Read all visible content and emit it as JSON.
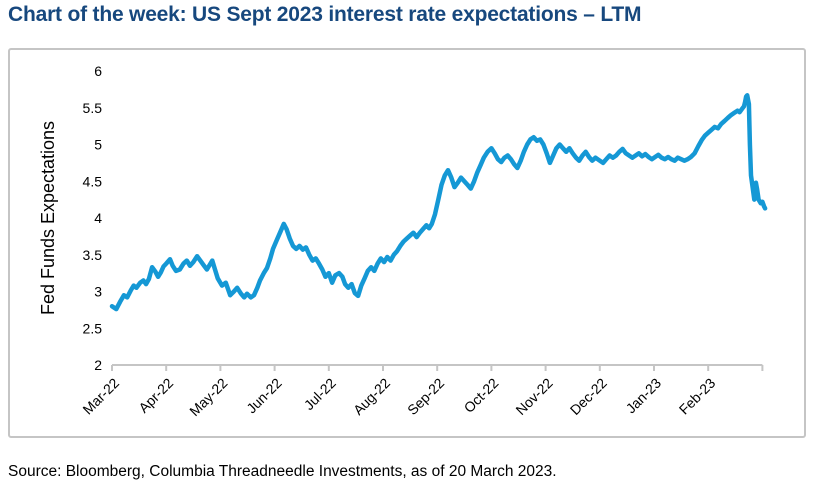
{
  "page": {
    "title": "Chart of the week: US Sept 2023 interest rate expectations – LTM",
    "source": "Source: Bloomberg, Columbia Threadneedle Investments, as of 20 March 2023.",
    "colors": {
      "title_navy": "#17487E",
      "line_blue": "#1598D5",
      "axis_gray": "#C5C5C5",
      "tick_text": "#000000"
    }
  },
  "chart_data": {
    "type": "line",
    "title": "US Sept 2023 interest rate expectations – LTM",
    "xlabel": "",
    "ylabel": "Fed Funds Expectations",
    "ylim": [
      2,
      6
    ],
    "y_ticks": [
      2,
      2.5,
      3,
      3.5,
      4,
      4.5,
      5,
      5.5,
      6
    ],
    "x_tick_labels": [
      "Mar-22",
      "Apr-22",
      "May-22",
      "Jun-22",
      "Jul-22",
      "Aug-22",
      "Sep-22",
      "Oct-22",
      "Nov-22",
      "Dec-22",
      "Jan-23",
      "Feb-23"
    ],
    "x_range_note": "daily data Mar-2022 through 20-Mar-2023, x in months since Mar-2022",
    "grid": false,
    "legend_position": "none",
    "series": [
      {
        "name": "Fed Funds Expectations",
        "points": [
          [
            0.0,
            2.8
          ],
          [
            0.08,
            2.76
          ],
          [
            0.15,
            2.86
          ],
          [
            0.22,
            2.95
          ],
          [
            0.28,
            2.92
          ],
          [
            0.35,
            3.02
          ],
          [
            0.4,
            3.08
          ],
          [
            0.45,
            3.05
          ],
          [
            0.52,
            3.12
          ],
          [
            0.58,
            3.15
          ],
          [
            0.63,
            3.1
          ],
          [
            0.68,
            3.17
          ],
          [
            0.74,
            3.33
          ],
          [
            0.8,
            3.27
          ],
          [
            0.85,
            3.2
          ],
          [
            0.9,
            3.26
          ],
          [
            0.95,
            3.34
          ],
          [
            1.0,
            3.38
          ],
          [
            1.07,
            3.44
          ],
          [
            1.12,
            3.35
          ],
          [
            1.18,
            3.28
          ],
          [
            1.25,
            3.3
          ],
          [
            1.32,
            3.38
          ],
          [
            1.38,
            3.42
          ],
          [
            1.44,
            3.35
          ],
          [
            1.5,
            3.4
          ],
          [
            1.57,
            3.48
          ],
          [
            1.63,
            3.42
          ],
          [
            1.7,
            3.35
          ],
          [
            1.75,
            3.3
          ],
          [
            1.8,
            3.36
          ],
          [
            1.85,
            3.42
          ],
          [
            1.9,
            3.3
          ],
          [
            1.95,
            3.18
          ],
          [
            2.03,
            3.08
          ],
          [
            2.1,
            3.12
          ],
          [
            2.18,
            2.95
          ],
          [
            2.25,
            3.0
          ],
          [
            2.31,
            3.05
          ],
          [
            2.38,
            2.97
          ],
          [
            2.44,
            2.92
          ],
          [
            2.49,
            2.97
          ],
          [
            2.56,
            2.92
          ],
          [
            2.62,
            2.95
          ],
          [
            2.68,
            3.05
          ],
          [
            2.73,
            3.15
          ],
          [
            2.8,
            3.25
          ],
          [
            2.86,
            3.32
          ],
          [
            2.92,
            3.45
          ],
          [
            2.97,
            3.58
          ],
          [
            3.04,
            3.7
          ],
          [
            3.1,
            3.8
          ],
          [
            3.17,
            3.92
          ],
          [
            3.22,
            3.85
          ],
          [
            3.28,
            3.72
          ],
          [
            3.34,
            3.62
          ],
          [
            3.4,
            3.58
          ],
          [
            3.46,
            3.62
          ],
          [
            3.52,
            3.57
          ],
          [
            3.58,
            3.6
          ],
          [
            3.64,
            3.5
          ],
          [
            3.7,
            3.42
          ],
          [
            3.76,
            3.45
          ],
          [
            3.82,
            3.38
          ],
          [
            3.88,
            3.3
          ],
          [
            3.94,
            3.2
          ],
          [
            4.0,
            3.25
          ],
          [
            4.06,
            3.12
          ],
          [
            4.12,
            3.22
          ],
          [
            4.19,
            3.25
          ],
          [
            4.25,
            3.2
          ],
          [
            4.3,
            3.1
          ],
          [
            4.36,
            3.05
          ],
          [
            4.42,
            3.1
          ],
          [
            4.48,
            2.98
          ],
          [
            4.54,
            2.94
          ],
          [
            4.6,
            3.08
          ],
          [
            4.66,
            3.18
          ],
          [
            4.72,
            3.28
          ],
          [
            4.78,
            3.33
          ],
          [
            4.84,
            3.28
          ],
          [
            4.9,
            3.38
          ],
          [
            4.96,
            3.45
          ],
          [
            5.02,
            3.4
          ],
          [
            5.08,
            3.47
          ],
          [
            5.14,
            3.42
          ],
          [
            5.2,
            3.5
          ],
          [
            5.26,
            3.55
          ],
          [
            5.32,
            3.62
          ],
          [
            5.38,
            3.68
          ],
          [
            5.44,
            3.72
          ],
          [
            5.5,
            3.76
          ],
          [
            5.56,
            3.8
          ],
          [
            5.62,
            3.74
          ],
          [
            5.68,
            3.8
          ],
          [
            5.74,
            3.85
          ],
          [
            5.8,
            3.9
          ],
          [
            5.85,
            3.86
          ],
          [
            5.9,
            3.92
          ],
          [
            5.96,
            4.05
          ],
          [
            6.02,
            4.25
          ],
          [
            6.08,
            4.45
          ],
          [
            6.14,
            4.58
          ],
          [
            6.2,
            4.65
          ],
          [
            6.26,
            4.55
          ],
          [
            6.32,
            4.42
          ],
          [
            6.38,
            4.48
          ],
          [
            6.44,
            4.55
          ],
          [
            6.5,
            4.5
          ],
          [
            6.56,
            4.45
          ],
          [
            6.62,
            4.4
          ],
          [
            6.68,
            4.5
          ],
          [
            6.74,
            4.62
          ],
          [
            6.8,
            4.72
          ],
          [
            6.86,
            4.82
          ],
          [
            6.93,
            4.9
          ],
          [
            7.0,
            4.95
          ],
          [
            7.06,
            4.88
          ],
          [
            7.12,
            4.8
          ],
          [
            7.18,
            4.76
          ],
          [
            7.24,
            4.82
          ],
          [
            7.3,
            4.85
          ],
          [
            7.36,
            4.8
          ],
          [
            7.42,
            4.73
          ],
          [
            7.48,
            4.68
          ],
          [
            7.54,
            4.78
          ],
          [
            7.6,
            4.9
          ],
          [
            7.66,
            5.0
          ],
          [
            7.72,
            5.07
          ],
          [
            7.78,
            5.1
          ],
          [
            7.84,
            5.05
          ],
          [
            7.9,
            5.07
          ],
          [
            7.96,
            5.0
          ],
          [
            8.02,
            4.88
          ],
          [
            8.08,
            4.75
          ],
          [
            8.14,
            4.85
          ],
          [
            8.2,
            4.95
          ],
          [
            8.26,
            5.0
          ],
          [
            8.32,
            4.95
          ],
          [
            8.38,
            4.9
          ],
          [
            8.44,
            4.95
          ],
          [
            8.5,
            4.88
          ],
          [
            8.56,
            4.82
          ],
          [
            8.62,
            4.78
          ],
          [
            8.68,
            4.85
          ],
          [
            8.74,
            4.9
          ],
          [
            8.8,
            4.83
          ],
          [
            8.86,
            4.78
          ],
          [
            8.92,
            4.82
          ],
          [
            9.0,
            4.78
          ],
          [
            9.06,
            4.75
          ],
          [
            9.12,
            4.8
          ],
          [
            9.18,
            4.85
          ],
          [
            9.24,
            4.82
          ],
          [
            9.3,
            4.85
          ],
          [
            9.36,
            4.9
          ],
          [
            9.42,
            4.94
          ],
          [
            9.48,
            4.88
          ],
          [
            9.54,
            4.85
          ],
          [
            9.6,
            4.82
          ],
          [
            9.66,
            4.85
          ],
          [
            9.72,
            4.88
          ],
          [
            9.78,
            4.84
          ],
          [
            9.84,
            4.87
          ],
          [
            9.9,
            4.83
          ],
          [
            9.96,
            4.8
          ],
          [
            10.02,
            4.83
          ],
          [
            10.08,
            4.86
          ],
          [
            10.14,
            4.82
          ],
          [
            10.2,
            4.8
          ],
          [
            10.26,
            4.83
          ],
          [
            10.32,
            4.8
          ],
          [
            10.38,
            4.78
          ],
          [
            10.44,
            4.82
          ],
          [
            10.5,
            4.8
          ],
          [
            10.56,
            4.78
          ],
          [
            10.62,
            4.8
          ],
          [
            10.68,
            4.83
          ],
          [
            10.75,
            4.88
          ],
          [
            10.82,
            4.98
          ],
          [
            10.88,
            5.06
          ],
          [
            10.94,
            5.12
          ],
          [
            11.0,
            5.16
          ],
          [
            11.06,
            5.2
          ],
          [
            11.12,
            5.24
          ],
          [
            11.18,
            5.22
          ],
          [
            11.24,
            5.28
          ],
          [
            11.3,
            5.32
          ],
          [
            11.36,
            5.36
          ],
          [
            11.42,
            5.4
          ],
          [
            11.48,
            5.43
          ],
          [
            11.54,
            5.46
          ],
          [
            11.58,
            5.44
          ],
          [
            11.62,
            5.48
          ],
          [
            11.66,
            5.52
          ],
          [
            11.68,
            5.58
          ],
          [
            11.7,
            5.65
          ],
          [
            11.72,
            5.67
          ],
          [
            11.75,
            5.55
          ],
          [
            11.77,
            5.0
          ],
          [
            11.79,
            4.58
          ],
          [
            11.82,
            4.42
          ],
          [
            11.85,
            4.25
          ],
          [
            11.88,
            4.48
          ],
          [
            11.9,
            4.4
          ],
          [
            11.93,
            4.25
          ],
          [
            11.97,
            4.2
          ],
          [
            12.0,
            4.22
          ],
          [
            12.03,
            4.16
          ],
          [
            12.05,
            4.13
          ]
        ]
      }
    ]
  }
}
